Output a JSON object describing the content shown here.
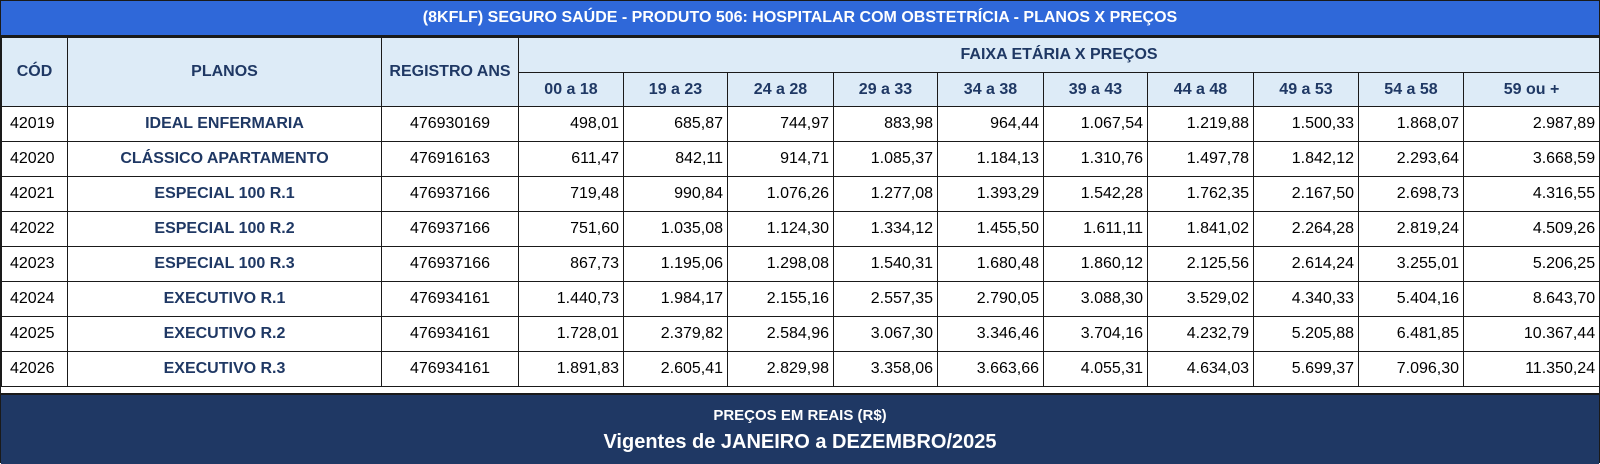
{
  "title": "(8KFLF) SEGURO SAÚDE - PRODUTO 506: HOSPITALAR COM OBSTETRÍCIA - PLANOS X PREÇOS",
  "headers": {
    "cod": "CÓD",
    "planos": "PLANOS",
    "registro": "REGISTRO ANS",
    "faixa": "FAIXA ETÁRIA X PREÇOS",
    "age_bands": [
      "00 a 18",
      "19 a 23",
      "24 a 28",
      "29 a 33",
      "34 a 38",
      "39 a 43",
      "44 a 48",
      "49 a 53",
      "54 a 58",
      "59 ou +"
    ]
  },
  "rows": [
    {
      "cod": "42019",
      "plan": "IDEAL ENFERMARIA",
      "registro": "476930169",
      "prices": [
        "498,01",
        "685,87",
        "744,97",
        "883,98",
        "964,44",
        "1.067,54",
        "1.219,88",
        "1.500,33",
        "1.868,07",
        "2.987,89"
      ]
    },
    {
      "cod": "42020",
      "plan": "CLÁSSICO APARTAMENTO",
      "registro": "476916163",
      "prices": [
        "611,47",
        "842,11",
        "914,71",
        "1.085,37",
        "1.184,13",
        "1.310,76",
        "1.497,78",
        "1.842,12",
        "2.293,64",
        "3.668,59"
      ]
    },
    {
      "cod": "42021",
      "plan": "ESPECIAL 100 R.1",
      "registro": "476937166",
      "prices": [
        "719,48",
        "990,84",
        "1.076,26",
        "1.277,08",
        "1.393,29",
        "1.542,28",
        "1.762,35",
        "2.167,50",
        "2.698,73",
        "4.316,55"
      ]
    },
    {
      "cod": "42022",
      "plan": "ESPECIAL 100 R.2",
      "registro": "476937166",
      "prices": [
        "751,60",
        "1.035,08",
        "1.124,30",
        "1.334,12",
        "1.455,50",
        "1.611,11",
        "1.841,02",
        "2.264,28",
        "2.819,24",
        "4.509,26"
      ]
    },
    {
      "cod": "42023",
      "plan": "ESPECIAL 100 R.3",
      "registro": "476937166",
      "prices": [
        "867,73",
        "1.195,06",
        "1.298,08",
        "1.540,31",
        "1.680,48",
        "1.860,12",
        "2.125,56",
        "2.614,24",
        "3.255,01",
        "5.206,25"
      ]
    },
    {
      "cod": "42024",
      "plan": "EXECUTIVO R.1",
      "registro": "476934161",
      "prices": [
        "1.440,73",
        "1.984,17",
        "2.155,16",
        "2.557,35",
        "2.790,05",
        "3.088,30",
        "3.529,02",
        "4.340,33",
        "5.404,16",
        "8.643,70"
      ]
    },
    {
      "cod": "42025",
      "plan": "EXECUTIVO R.2",
      "registro": "476934161",
      "prices": [
        "1.728,01",
        "2.379,82",
        "2.584,96",
        "3.067,30",
        "3.346,46",
        "3.704,16",
        "4.232,79",
        "5.205,88",
        "6.481,85",
        "10.367,44"
      ]
    },
    {
      "cod": "42026",
      "plan": "EXECUTIVO R.3",
      "registro": "476934161",
      "prices": [
        "1.891,83",
        "2.605,41",
        "2.829,98",
        "3.358,06",
        "3.663,66",
        "4.055,31",
        "4.634,03",
        "5.699,37",
        "7.096,30",
        "11.350,24"
      ]
    }
  ],
  "footer": {
    "currency_note": "PREÇOS EM REAIS (R$)",
    "validity": "Vigentes de JANEIRO a DEZEMBRO/2025"
  },
  "colors": {
    "title_bg": "#2f68d9",
    "header_bg": "#ddebf7",
    "header_text": "#1f3864",
    "footer_bg": "#1f3864"
  }
}
